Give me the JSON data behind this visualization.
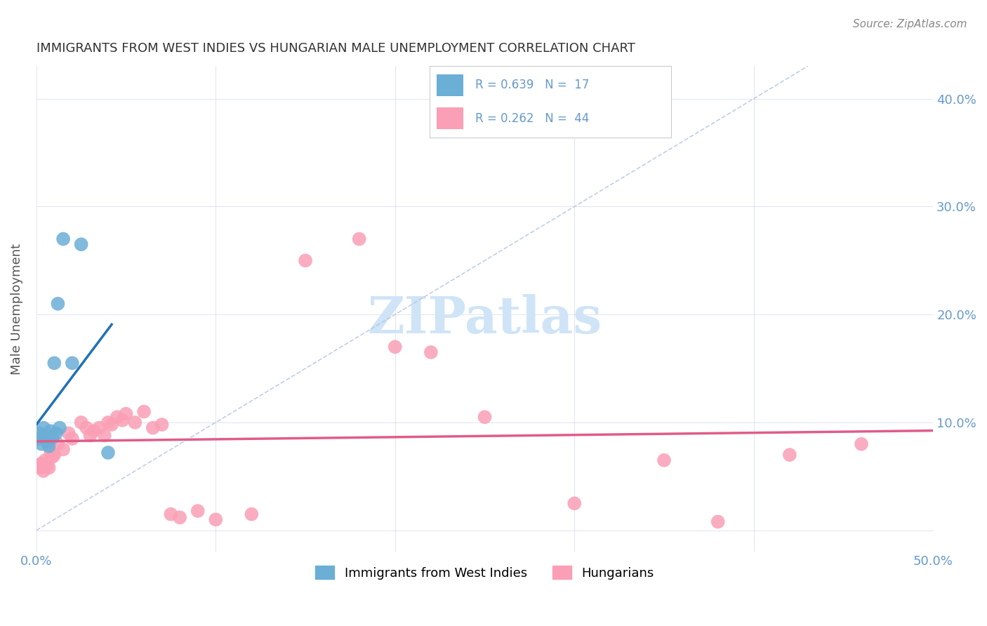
{
  "title": "IMMIGRANTS FROM WEST INDIES VS HUNGARIAN MALE UNEMPLOYMENT CORRELATION CHART",
  "source": "Source: ZipAtlas.com",
  "ylabel": "Male Unemployment",
  "xlim": [
    0.0,
    0.5
  ],
  "ylim": [
    -0.02,
    0.43
  ],
  "legend_r1": "R = 0.639",
  "legend_n1": "N =  17",
  "legend_r2": "R = 0.262",
  "legend_n2": "N =  44",
  "blue_color": "#6baed6",
  "pink_color": "#fa9fb5",
  "blue_line_color": "#2171b5",
  "pink_line_color": "#e05c8a",
  "dash_color": "#b0c4de",
  "watermark_color": "#d0e4f7",
  "title_color": "#333333",
  "axis_color": "#6699cc",
  "west_indies_x": [
    0.001,
    0.002,
    0.003,
    0.004,
    0.005,
    0.006,
    0.007,
    0.008,
    0.009,
    0.01,
    0.011,
    0.012,
    0.013,
    0.015,
    0.02,
    0.025,
    0.04
  ],
  "west_indies_y": [
    0.085,
    0.09,
    0.08,
    0.095,
    0.088,
    0.082,
    0.078,
    0.092,
    0.086,
    0.155,
    0.09,
    0.21,
    0.095,
    0.27,
    0.155,
    0.265,
    0.072
  ],
  "hungarians_x": [
    0.001,
    0.002,
    0.003,
    0.004,
    0.005,
    0.006,
    0.007,
    0.008,
    0.009,
    0.01,
    0.012,
    0.015,
    0.018,
    0.02,
    0.025,
    0.028,
    0.03,
    0.032,
    0.035,
    0.038,
    0.04,
    0.042,
    0.045,
    0.048,
    0.05,
    0.055,
    0.06,
    0.065,
    0.07,
    0.075,
    0.08,
    0.09,
    0.1,
    0.12,
    0.15,
    0.18,
    0.2,
    0.22,
    0.25,
    0.3,
    0.35,
    0.38,
    0.42,
    0.46
  ],
  "hungarians_y": [
    0.06,
    0.058,
    0.062,
    0.055,
    0.065,
    0.06,
    0.058,
    0.072,
    0.068,
    0.07,
    0.08,
    0.075,
    0.09,
    0.085,
    0.1,
    0.095,
    0.088,
    0.092,
    0.095,
    0.088,
    0.1,
    0.098,
    0.105,
    0.102,
    0.108,
    0.1,
    0.11,
    0.095,
    0.098,
    0.015,
    0.012,
    0.018,
    0.01,
    0.015,
    0.25,
    0.27,
    0.17,
    0.165,
    0.105,
    0.025,
    0.065,
    0.008,
    0.07,
    0.08
  ]
}
